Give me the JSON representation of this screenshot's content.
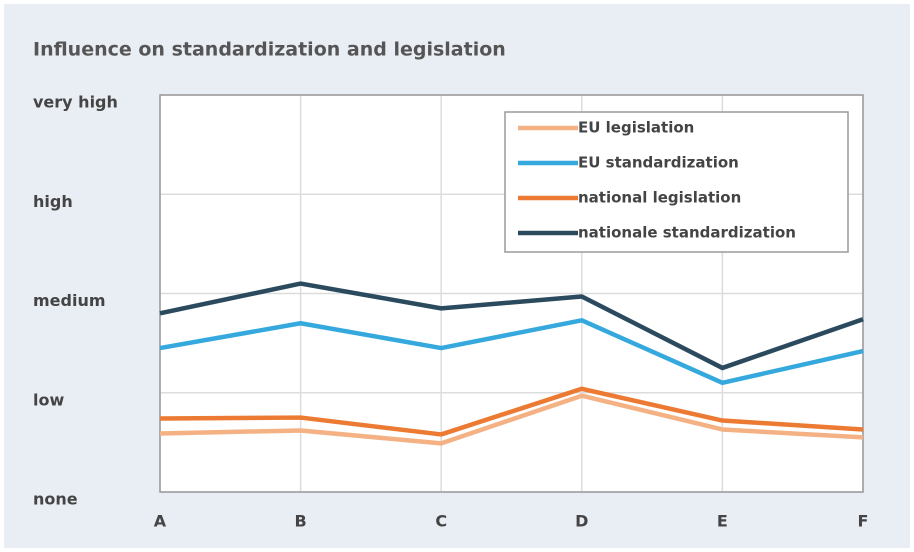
{
  "chart_data": {
    "type": "line",
    "title": "Influence on standardization and legislation",
    "categories": [
      "A",
      "B",
      "C",
      "D",
      "E",
      "F"
    ],
    "series": [
      {
        "name": "EU legislation",
        "color": "#f4b183",
        "values": [
          0.59,
          0.62,
          0.49,
          0.97,
          0.63,
          0.55
        ]
      },
      {
        "name": "EU standardization",
        "color": "#35a9dd",
        "values": [
          1.45,
          1.7,
          1.45,
          1.73,
          1.1,
          1.42
        ]
      },
      {
        "name": "national legislation",
        "color": "#ec7a32",
        "values": [
          0.74,
          0.75,
          0.58,
          1.04,
          0.72,
          0.63
        ]
      },
      {
        "name": "nationale standardization",
        "color": "#2b4a5e",
        "values": [
          1.8,
          2.1,
          1.85,
          1.97,
          1.25,
          1.74
        ]
      }
    ],
    "ylim": [
      0,
      4
    ],
    "yticks": [
      {
        "value": 0,
        "label": "none"
      },
      {
        "value": 1,
        "label": "low"
      },
      {
        "value": 2,
        "label": "medium"
      },
      {
        "value": 3,
        "label": "high"
      },
      {
        "value": 4,
        "label": "very high"
      }
    ],
    "grid": true,
    "legend": "upper right"
  }
}
